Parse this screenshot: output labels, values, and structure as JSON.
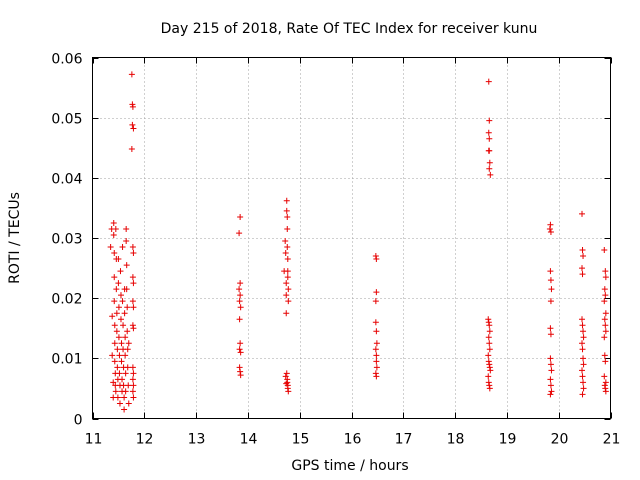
{
  "chart_data": {
    "type": "scatter",
    "title": "Day 215 of 2018, Rate Of TEC Index for receiver kunu",
    "xlabel": "GPS time / hours",
    "ylabel": "ROTI / TECUs",
    "xlim": [
      11,
      21
    ],
    "ylim": [
      0,
      0.06
    ],
    "xticks": [
      "11",
      "12",
      "13",
      "14",
      "15",
      "16",
      "17",
      "18",
      "19",
      "20",
      "21"
    ],
    "yticks": [
      "0",
      "0.01",
      "0.02",
      "0.03",
      "0.04",
      "0.05",
      "0.06"
    ],
    "grid": true,
    "marker": "+",
    "color": "#e60000",
    "series": [
      {
        "points": [
          [
            11.35,
            0.0285
          ],
          [
            11.37,
            0.0315
          ],
          [
            11.38,
            0.017
          ],
          [
            11.38,
            0.0105
          ],
          [
            11.4,
            0.006
          ],
          [
            11.4,
            0.0035
          ],
          [
            11.41,
            0.0325
          ],
          [
            11.41,
            0.0305
          ],
          [
            11.42,
            0.0275
          ],
          [
            11.42,
            0.0235
          ],
          [
            11.42,
            0.0195
          ],
          [
            11.43,
            0.0155
          ],
          [
            11.43,
            0.0125
          ],
          [
            11.43,
            0.0095
          ],
          [
            11.44,
            0.0075
          ],
          [
            11.44,
            0.0055
          ],
          [
            11.45,
            0.0045
          ],
          [
            11.45,
            0.0315
          ],
          [
            11.46,
            0.0265
          ],
          [
            11.46,
            0.0215
          ],
          [
            11.47,
            0.0175
          ],
          [
            11.47,
            0.0145
          ],
          [
            11.48,
            0.0115
          ],
          [
            11.48,
            0.0085
          ],
          [
            11.49,
            0.0065
          ],
          [
            11.49,
            0.0035
          ],
          [
            11.5,
            0.0265
          ],
          [
            11.5,
            0.0225
          ],
          [
            11.51,
            0.0185
          ],
          [
            11.51,
            0.0135
          ],
          [
            11.52,
            0.0105
          ],
          [
            11.52,
            0.0075
          ],
          [
            11.53,
            0.0055
          ],
          [
            11.53,
            0.0025
          ],
          [
            11.54,
            0.0245
          ],
          [
            11.55,
            0.0205
          ],
          [
            11.55,
            0.0165
          ],
          [
            11.56,
            0.0125
          ],
          [
            11.56,
            0.0095
          ],
          [
            11.57,
            0.0065
          ],
          [
            11.57,
            0.0045
          ],
          [
            11.58,
            0.0285
          ],
          [
            11.58,
            0.0195
          ],
          [
            11.59,
            0.0155
          ],
          [
            11.59,
            0.0115
          ],
          [
            11.6,
            0.0085
          ],
          [
            11.6,
            0.0055
          ],
          [
            11.61,
            0.0035
          ],
          [
            11.61,
            0.0015
          ],
          [
            11.62,
            0.0215
          ],
          [
            11.62,
            0.0175
          ],
          [
            11.63,
            0.0135
          ],
          [
            11.63,
            0.0105
          ],
          [
            11.64,
            0.0075
          ],
          [
            11.64,
            0.0045
          ],
          [
            11.65,
            0.0315
          ],
          [
            11.65,
            0.0295
          ],
          [
            11.66,
            0.0255
          ],
          [
            11.66,
            0.0215
          ],
          [
            11.67,
            0.0185
          ],
          [
            11.67,
            0.0145
          ],
          [
            11.68,
            0.0115
          ],
          [
            11.68,
            0.0085
          ],
          [
            11.69,
            0.0055
          ],
          [
            11.7,
            0.0025
          ],
          [
            11.7,
            0.0125
          ],
          [
            11.76,
            0.0572
          ],
          [
            11.77,
            0.0522
          ],
          [
            11.78,
            0.0518
          ],
          [
            11.77,
            0.0488
          ],
          [
            11.79,
            0.0482
          ],
          [
            11.76,
            0.0448
          ],
          [
            11.78,
            0.0285
          ],
          [
            11.79,
            0.0275
          ],
          [
            11.78,
            0.0235
          ],
          [
            11.79,
            0.0225
          ],
          [
            11.78,
            0.0195
          ],
          [
            11.79,
            0.0185
          ],
          [
            11.78,
            0.0155
          ],
          [
            11.79,
            0.015
          ],
          [
            11.78,
            0.0085
          ],
          [
            11.79,
            0.0075
          ],
          [
            11.78,
            0.0065
          ],
          [
            11.79,
            0.0055
          ],
          [
            11.78,
            0.0045
          ],
          [
            11.79,
            0.0035
          ],
          [
            13.85,
            0.0335
          ],
          [
            13.83,
            0.0308
          ],
          [
            13.85,
            0.0225
          ],
          [
            13.83,
            0.0215
          ],
          [
            13.85,
            0.0205
          ],
          [
            13.84,
            0.0195
          ],
          [
            13.86,
            0.0185
          ],
          [
            13.84,
            0.0165
          ],
          [
            13.85,
            0.0125
          ],
          [
            13.84,
            0.0115
          ],
          [
            13.86,
            0.011
          ],
          [
            13.84,
            0.0085
          ],
          [
            13.85,
            0.0078
          ],
          [
            13.86,
            0.0072
          ],
          [
            14.7,
            0.0245
          ],
          [
            14.72,
            0.0295
          ],
          [
            14.73,
            0.0275
          ],
          [
            14.74,
            0.0225
          ],
          [
            14.74,
            0.0205
          ],
          [
            14.75,
            0.0362
          ],
          [
            14.75,
            0.0345
          ],
          [
            14.76,
            0.0335
          ],
          [
            14.76,
            0.0315
          ],
          [
            14.76,
            0.0285
          ],
          [
            14.77,
            0.0265
          ],
          [
            14.77,
            0.0245
          ],
          [
            14.77,
            0.0235
          ],
          [
            14.78,
            0.0215
          ],
          [
            14.78,
            0.0195
          ],
          [
            14.74,
            0.0175
          ],
          [
            14.75,
            0.0075
          ],
          [
            14.76,
            0.0065
          ],
          [
            14.76,
            0.006
          ],
          [
            14.77,
            0.0055
          ],
          [
            14.77,
            0.005
          ],
          [
            14.78,
            0.0045
          ],
          [
            14.73,
            0.007
          ],
          [
            14.74,
            0.0058
          ],
          [
            16.47,
            0.027
          ],
          [
            16.48,
            0.0265
          ],
          [
            16.48,
            0.021
          ],
          [
            16.47,
            0.0195
          ],
          [
            16.47,
            0.016
          ],
          [
            16.48,
            0.0145
          ],
          [
            16.49,
            0.0125
          ],
          [
            16.47,
            0.0115
          ],
          [
            16.48,
            0.0105
          ],
          [
            16.48,
            0.0095
          ],
          [
            16.49,
            0.0085
          ],
          [
            16.47,
            0.0075
          ],
          [
            16.48,
            0.007
          ],
          [
            18.65,
            0.056
          ],
          [
            18.66,
            0.0495
          ],
          [
            18.65,
            0.0475
          ],
          [
            18.66,
            0.0465
          ],
          [
            18.65,
            0.0445
          ],
          [
            18.66,
            0.0445
          ],
          [
            18.67,
            0.0425
          ],
          [
            18.66,
            0.0415
          ],
          [
            18.68,
            0.0405
          ],
          [
            18.64,
            0.0165
          ],
          [
            18.65,
            0.016
          ],
          [
            18.66,
            0.0155
          ],
          [
            18.67,
            0.0145
          ],
          [
            18.65,
            0.0135
          ],
          [
            18.66,
            0.0125
          ],
          [
            18.67,
            0.0115
          ],
          [
            18.64,
            0.0105
          ],
          [
            18.65,
            0.0095
          ],
          [
            18.66,
            0.009
          ],
          [
            18.67,
            0.0085
          ],
          [
            18.68,
            0.008
          ],
          [
            18.64,
            0.007
          ],
          [
            18.65,
            0.006
          ],
          [
            18.66,
            0.0055
          ],
          [
            18.67,
            0.005
          ],
          [
            19.83,
            0.0315
          ],
          [
            19.84,
            0.0322
          ],
          [
            19.85,
            0.031
          ],
          [
            19.84,
            0.0245
          ],
          [
            19.85,
            0.023
          ],
          [
            19.86,
            0.0215
          ],
          [
            19.85,
            0.0195
          ],
          [
            19.84,
            0.015
          ],
          [
            19.85,
            0.014
          ],
          [
            19.84,
            0.01
          ],
          [
            19.85,
            0.009
          ],
          [
            19.86,
            0.008
          ],
          [
            19.84,
            0.0065
          ],
          [
            19.85,
            0.0055
          ],
          [
            19.86,
            0.0045
          ],
          [
            19.84,
            0.004
          ],
          [
            20.45,
            0.034
          ],
          [
            20.46,
            0.028
          ],
          [
            20.47,
            0.027
          ],
          [
            20.45,
            0.025
          ],
          [
            20.46,
            0.024
          ],
          [
            20.45,
            0.0165
          ],
          [
            20.46,
            0.0155
          ],
          [
            20.47,
            0.0145
          ],
          [
            20.48,
            0.0135
          ],
          [
            20.45,
            0.0125
          ],
          [
            20.46,
            0.0115
          ],
          [
            20.47,
            0.01
          ],
          [
            20.48,
            0.009
          ],
          [
            20.45,
            0.008
          ],
          [
            20.46,
            0.007
          ],
          [
            20.47,
            0.006
          ],
          [
            20.48,
            0.005
          ],
          [
            20.46,
            0.004
          ],
          [
            20.88,
            0.028
          ],
          [
            20.9,
            0.0245
          ],
          [
            20.91,
            0.0235
          ],
          [
            20.89,
            0.0215
          ],
          [
            20.9,
            0.0205
          ],
          [
            20.88,
            0.0195
          ],
          [
            20.91,
            0.0175
          ],
          [
            20.89,
            0.0165
          ],
          [
            20.9,
            0.0155
          ],
          [
            20.91,
            0.0145
          ],
          [
            20.88,
            0.0135
          ],
          [
            20.89,
            0.0105
          ],
          [
            20.9,
            0.0095
          ],
          [
            20.88,
            0.007
          ],
          [
            20.91,
            0.006
          ],
          [
            20.89,
            0.0055
          ],
          [
            20.9,
            0.005
          ],
          [
            20.91,
            0.0045
          ]
        ]
      }
    ]
  }
}
